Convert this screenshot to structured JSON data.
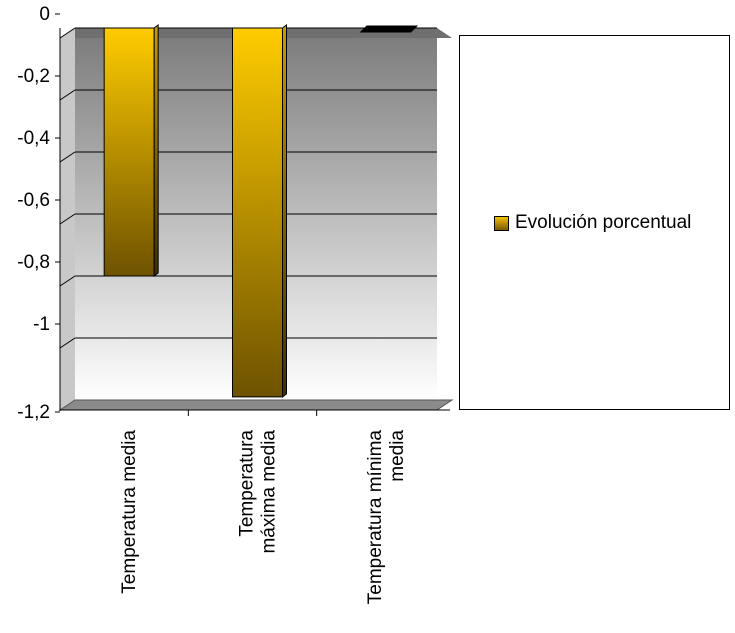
{
  "chart_data": {
    "type": "bar",
    "categories": [
      "Temperatura media",
      "Temperatura máxima media",
      "Temperatura mínima media"
    ],
    "category_lines": [
      [
        "Temperatura media"
      ],
      [
        "Temperatura",
        "máxima media"
      ],
      [
        "Temperatura mínima",
        "media"
      ]
    ],
    "series": [
      {
        "name": "Evolución porcentual",
        "values": [
          -0.8,
          -1.19,
          0
        ]
      }
    ],
    "yticks": [
      "0",
      "-0,2",
      "-0,4",
      "-0,6",
      "-0,8",
      "-1",
      "-1,2"
    ],
    "ytick_values": [
      0,
      -0.2,
      -0.4,
      -0.6,
      -0.8,
      -1,
      -1.2
    ],
    "ylim": [
      -1.2,
      0
    ],
    "grid": true,
    "legend": "right",
    "colors": {
      "bar_top": "#ffcc00",
      "bar_bottom": "#6e5200",
      "wall_top": "#7a7a7a",
      "wall_bottom": "#ffffff",
      "floor": "#8a8a8a"
    }
  }
}
